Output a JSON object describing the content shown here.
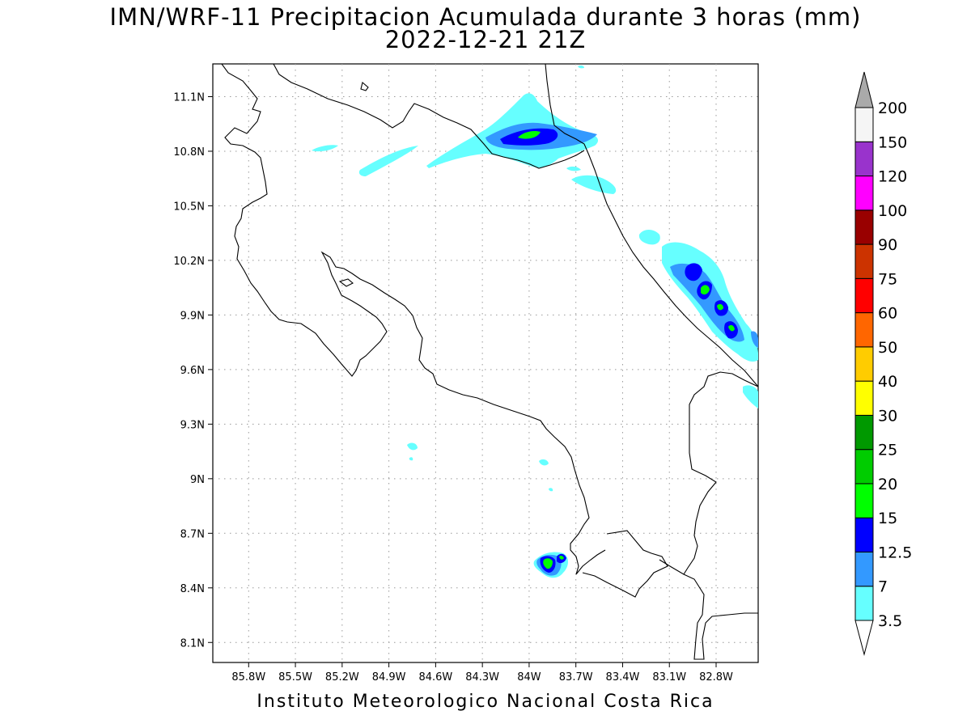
{
  "title": "IMN/WRF-11 Precipitacion Acumulada durante 3 horas (mm)",
  "subtitle": "2022-12-21 21Z",
  "footer": "Instituto Meteorologico Nacional Costa Rica",
  "map": {
    "lon_range": [
      -86.03,
      -82.53
    ],
    "lat_range": [
      7.99,
      11.28
    ],
    "lat_ticks": [
      "11.1N",
      "10.8N",
      "10.5N",
      "10.2N",
      "9.9N",
      "9.6N",
      "9.3N",
      "9N",
      "8.7N",
      "8.4N",
      "8.1N"
    ],
    "lon_ticks": [
      "85.8W",
      "85.5W",
      "85.2W",
      "84.9W",
      "84.6W",
      "84.3W",
      "84W",
      "83.7W",
      "83.4W",
      "83.1W",
      "82.8W"
    ]
  },
  "legend": {
    "levels": [
      "3.5",
      "7",
      "12.5",
      "15",
      "20",
      "25",
      "30",
      "40",
      "50",
      "60",
      "75",
      "90",
      "100",
      "120",
      "150",
      "200"
    ],
    "colors": [
      "#66ffff",
      "#3399ff",
      "#0000ff",
      "#00ff00",
      "#00cc00",
      "#009900",
      "#ffff00",
      "#ffcc00",
      "#ff6600",
      "#ff0000",
      "#cc3300",
      "#990000",
      "#ff00ff",
      "#9933cc",
      "#f5f5f5",
      "#aaaaaa"
    ]
  },
  "colors": {
    "coast": "#000000",
    "grid": "#999999"
  }
}
